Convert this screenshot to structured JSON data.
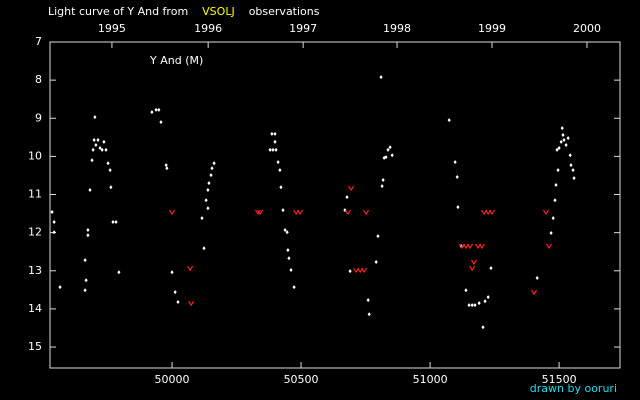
{
  "chart_data": {
    "type": "scatter",
    "title_parts": [
      {
        "text": "Light curve of Y And from",
        "color": "#ffffff"
      },
      {
        "text": "VSOLJ",
        "color": "#ffff00"
      },
      {
        "text": "observations",
        "color": "#ffffff"
      }
    ],
    "annotation": "Y And (M)",
    "credit": "drawn by ooruri",
    "xlim": [
      49527,
      51736
    ],
    "ylim": [
      7,
      15.55
    ],
    "y_inverted": true,
    "xticks": [
      50000,
      50500,
      51000,
      51500
    ],
    "yticks": [
      7,
      8,
      9,
      10,
      11,
      12,
      13,
      14,
      15
    ],
    "top_ticks": [
      {
        "value": 49767,
        "label": "1995"
      },
      {
        "value": 50140,
        "label": "1996"
      },
      {
        "value": 50508,
        "label": "1997"
      },
      {
        "value": 50872,
        "label": "1998"
      },
      {
        "value": 51240,
        "label": "1999"
      },
      {
        "value": 51608,
        "label": "2000"
      }
    ],
    "series": [
      {
        "color": "#ffffff",
        "marker": "dot",
        "x": [
          49535,
          49543,
          49543,
          49566,
          49663,
          49667,
          49663,
          49674,
          49674,
          49682,
          49690,
          49694,
          49698,
          49701,
          49705,
          49713,
          49721,
          49729,
          49736,
          49744,
          49752,
          49760,
          49763,
          49771,
          49783,
          49794,
          49922,
          49938,
          49949,
          49957,
          49977,
          49980,
          50000,
          50012,
          50023,
          50124,
          50132,
          50139,
          50139,
          50143,
          50151,
          50163,
          50155,
          50116,
          50387,
          50399,
          50380,
          50391,
          50403,
          50399,
          50411,
          50418,
          50422,
          50430,
          50438,
          50446,
          50449,
          50453,
          50461,
          50473,
          50670,
          50678,
          50690,
          50760,
          50764,
          50791,
          50798,
          50810,
          50814,
          50818,
          50822,
          50829,
          50837,
          50845,
          50853,
          51074,
          51097,
          51105,
          51108,
          51120,
          51139,
          51151,
          51163,
          51174,
          51190,
          51205,
          51213,
          51225,
          51236,
          51415,
          51469,
          51477,
          51484,
          51488,
          51496,
          51492,
          51500,
          51508,
          51512,
          51515,
          51519,
          51527,
          51535,
          51543,
          51546,
          51554,
          51558
        ],
        "values": [
          11.46,
          11.72,
          11.99,
          13.43,
          13.51,
          13.25,
          12.72,
          11.93,
          12.07,
          10.88,
          10.1,
          9.83,
          9.57,
          8.97,
          9.7,
          9.57,
          9.78,
          9.83,
          9.62,
          9.83,
          10.18,
          10.36,
          10.81,
          11.72,
          11.72,
          13.04,
          8.84,
          8.78,
          8.78,
          9.1,
          10.23,
          10.31,
          13.04,
          13.56,
          13.82,
          12.41,
          11.15,
          11.36,
          10.88,
          10.7,
          10.49,
          10.18,
          10.31,
          11.62,
          9.41,
          9.41,
          9.83,
          9.83,
          9.83,
          9.62,
          10.15,
          10.36,
          10.81,
          11.41,
          11.93,
          11.99,
          12.46,
          12.67,
          12.98,
          13.43,
          11.41,
          11.07,
          13.01,
          13.77,
          14.14,
          12.77,
          12.09,
          7.92,
          10.78,
          10.62,
          10.04,
          10.02,
          9.83,
          9.76,
          9.97,
          9.05,
          10.15,
          10.54,
          11.33,
          12.35,
          13.51,
          13.9,
          13.9,
          13.9,
          13.85,
          14.48,
          13.8,
          13.69,
          12.93,
          13.19,
          12.01,
          11.62,
          11.15,
          10.75,
          10.36,
          9.83,
          9.78,
          9.62,
          9.26,
          9.44,
          9.57,
          9.7,
          9.52,
          9.97,
          10.23,
          10.36,
          10.57
        ]
      },
      {
        "color": "#ff2020",
        "marker": "fainter",
        "x": [
          50000,
          50070,
          50074,
          50333,
          50341,
          50481,
          50496,
          50682,
          50694,
          50713,
          50729,
          50744,
          50752,
          51124,
          51139,
          51155,
          51163,
          51170,
          51186,
          51201,
          51209,
          51225,
          51240,
          51403,
          51449,
          51461
        ],
        "values": [
          11.46,
          12.93,
          13.85,
          11.46,
          11.46,
          11.46,
          11.46,
          11.46,
          10.83,
          12.98,
          12.98,
          12.98,
          11.46,
          12.35,
          12.35,
          12.35,
          12.93,
          12.77,
          12.35,
          12.35,
          11.46,
          11.46,
          11.46,
          13.56,
          11.46,
          12.35
        ]
      }
    ]
  }
}
